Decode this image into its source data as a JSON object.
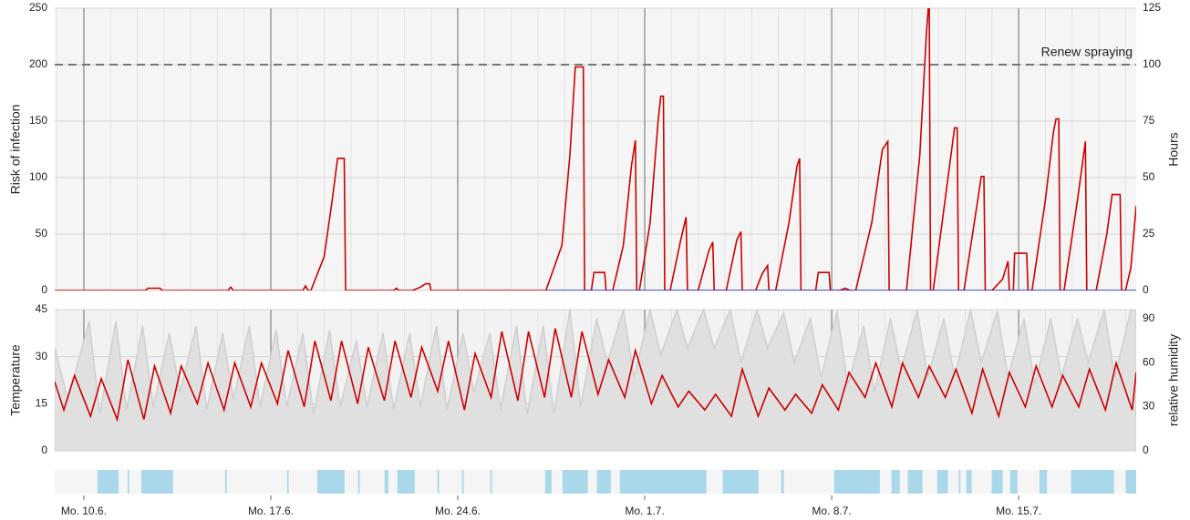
{
  "chart_data": [
    {
      "type": "line",
      "ylabel": "Risk of infection",
      "y2label": "Hours",
      "xlim": [
        -1.09,
        39.4
      ],
      "xticks": [
        0,
        7,
        14,
        21,
        28,
        35
      ],
      "ylim": [
        0,
        250
      ],
      "yticks": [
        0,
        50,
        100,
        150,
        200,
        250
      ],
      "y2lim": [
        0,
        125
      ],
      "y2ticks": [
        0,
        25,
        50,
        75,
        100,
        125
      ],
      "grid": true,
      "threshold": {
        "value": 200,
        "label": "Renew spraying"
      },
      "series": [
        {
          "color": "#cc0000",
          "x": [
            -1.09,
            2.3,
            2.4,
            2.85,
            2.95,
            5.4,
            5.5,
            5.6,
            8.2,
            8.3,
            8.4,
            8.5,
            9.0,
            9.3,
            9.5,
            9.75,
            9.8,
            11.6,
            11.7,
            11.8,
            12.3,
            12.6,
            12.8,
            12.95,
            13.0,
            17.3,
            17.9,
            18.2,
            18.4,
            18.7,
            18.75,
            19.0,
            19.1,
            19.5,
            19.55,
            19.8,
            20.2,
            20.5,
            20.65,
            20.7,
            20.8,
            21.2,
            21.5,
            21.6,
            21.7,
            21.75,
            21.95,
            22.35,
            22.55,
            22.6,
            23.0,
            23.4,
            23.55,
            23.6,
            24.05,
            24.45,
            24.6,
            24.65,
            25.15,
            25.4,
            25.6,
            25.65,
            25.9,
            26.4,
            26.7,
            26.8,
            26.85,
            27.4,
            27.5,
            27.9,
            27.95,
            28.3,
            28.5,
            28.7,
            28.9,
            29.5,
            29.9,
            30.1,
            30.15,
            30.8,
            31.3,
            31.55,
            31.65,
            31.7,
            31.8,
            32.3,
            32.6,
            32.7,
            32.75,
            32.95,
            33.4,
            33.6,
            33.7,
            33.75,
            34.0,
            34.4,
            34.6,
            34.65,
            34.8,
            34.85,
            35.3,
            35.35,
            35.5,
            36.0,
            36.3,
            36.4,
            36.5,
            36.55,
            36.7,
            37.2,
            37.5,
            37.55,
            37.9,
            38.3,
            38.5,
            38.8,
            38.85,
            39.0,
            39.2,
            39.4
          ],
          "values": [
            0,
            0,
            2,
            2,
            0,
            0,
            3,
            0,
            0,
            4,
            0,
            0,
            30,
            80,
            117,
            117,
            0,
            0,
            2,
            0,
            0,
            3,
            6,
            6,
            0,
            0,
            40,
            120,
            198,
            198,
            0,
            0,
            16,
            16,
            0,
            0,
            40,
            110,
            133,
            0,
            0,
            60,
            150,
            172,
            172,
            0,
            0,
            45,
            65,
            0,
            0,
            35,
            43,
            0,
            0,
            45,
            52,
            0,
            0,
            15,
            22,
            0,
            0,
            60,
            110,
            117,
            0,
            0,
            16,
            16,
            0,
            0,
            2,
            0,
            0,
            60,
            125,
            132,
            0,
            0,
            120,
            230,
            260,
            0,
            0,
            90,
            144,
            144,
            0,
            0,
            70,
            101,
            101,
            0,
            0,
            10,
            26,
            0,
            0,
            33,
            33,
            0,
            0,
            80,
            140,
            152,
            152,
            0,
            0,
            80,
            132,
            0,
            0,
            50,
            85,
            85,
            0,
            0,
            20,
            75
          ]
        },
        {
          "color": "#1a2fc0",
          "axis": "y2",
          "x": [
            17.3,
            39.4
          ],
          "values": [
            0,
            0
          ]
        }
      ]
    },
    {
      "type": "line",
      "ylabel": "Temperature",
      "y2label": "relative humidity",
      "xlim": [
        -1.09,
        39.4
      ],
      "xticks": [
        0,
        7,
        14,
        21,
        28,
        35
      ],
      "ylim": [
        0,
        45
      ],
      "yticks": [
        0,
        15,
        30,
        45
      ],
      "y2lim": [
        0,
        96
      ],
      "y2ticks": [
        0,
        30,
        60,
        90
      ],
      "grid": true,
      "series": [
        {
          "color": "#cfcfcf",
          "axis": "y2",
          "area": true,
          "x": [
            -1.09,
            -0.6,
            0.2,
            0.6,
            1.2,
            1.6,
            2.2,
            2.6,
            3.2,
            3.6,
            4.2,
            4.6,
            5.2,
            5.6,
            6.2,
            6.6,
            7.2,
            7.6,
            8.2,
            8.6,
            9.2,
            9.6,
            10.2,
            10.6,
            11.2,
            11.6,
            12.2,
            12.6,
            13.2,
            13.6,
            14.2,
            14.6,
            15.2,
            15.6,
            16.2,
            16.6,
            17.2,
            17.6,
            18.2,
            18.6,
            19.2,
            19.6,
            20.2,
            20.6,
            21.2,
            21.6,
            22.2,
            22.6,
            23.2,
            23.6,
            24.2,
            24.6,
            25.2,
            25.6,
            26.2,
            26.6,
            27.2,
            27.6,
            28.2,
            28.6,
            29.2,
            29.6,
            30.2,
            30.6,
            31.2,
            31.6,
            32.2,
            32.6,
            33.2,
            33.6,
            34.2,
            34.6,
            35.2,
            35.6,
            36.2,
            36.6,
            37.2,
            37.6,
            38.2,
            38.6,
            39.2,
            39.4
          ],
          "values": [
            70,
            35,
            88,
            25,
            88,
            28,
            85,
            30,
            80,
            40,
            85,
            28,
            80,
            35,
            85,
            30,
            82,
            30,
            80,
            25,
            82,
            30,
            75,
            30,
            80,
            28,
            80,
            30,
            85,
            28,
            80,
            40,
            80,
            28,
            85,
            25,
            85,
            25,
            96,
            30,
            90,
            60,
            96,
            50,
            96,
            65,
            96,
            70,
            96,
            70,
            96,
            60,
            96,
            70,
            94,
            60,
            90,
            50,
            95,
            45,
            85,
            40,
            90,
            55,
            96,
            50,
            90,
            50,
            96,
            60,
            95,
            50,
            90,
            45,
            90,
            50,
            90,
            60,
            96,
            50,
            96,
            96
          ]
        },
        {
          "color": "#cc0000",
          "x": [
            -1.09,
            -0.75,
            -0.35,
            0.25,
            0.65,
            1.25,
            1.65,
            2.25,
            2.65,
            3.25,
            3.65,
            4.25,
            4.65,
            5.25,
            5.65,
            6.25,
            6.65,
            7.25,
            7.65,
            8.25,
            8.65,
            9.25,
            9.65,
            10.25,
            10.65,
            11.25,
            11.65,
            12.25,
            12.65,
            13.25,
            13.65,
            14.25,
            14.65,
            15.25,
            15.65,
            16.25,
            16.65,
            17.25,
            17.65,
            18.25,
            18.65,
            19.25,
            19.65,
            20.25,
            20.65,
            21.25,
            21.65,
            22.25,
            22.65,
            23.25,
            23.65,
            24.25,
            24.65,
            25.25,
            25.65,
            26.25,
            26.65,
            27.25,
            27.65,
            28.25,
            28.65,
            29.25,
            29.65,
            30.25,
            30.65,
            31.25,
            31.65,
            32.25,
            32.65,
            33.25,
            33.65,
            34.25,
            34.65,
            35.25,
            35.65,
            36.25,
            36.65,
            37.25,
            37.65,
            38.25,
            38.65,
            39.25,
            39.4
          ],
          "values": [
            22,
            13,
            24,
            11,
            23,
            10,
            29,
            10,
            27,
            12,
            27,
            15,
            28,
            13,
            28,
            14,
            28,
            15,
            32,
            14,
            35,
            16,
            35,
            15,
            33,
            16,
            35,
            17,
            33,
            19,
            35,
            13,
            31,
            17,
            38,
            16,
            38,
            17,
            39,
            17,
            38,
            18,
            29,
            17,
            32,
            15,
            24,
            14,
            19,
            13,
            18,
            11,
            26,
            11,
            20,
            13,
            18,
            12,
            21,
            13,
            25,
            17,
            28,
            14,
            28,
            17,
            27,
            17,
            26,
            12,
            26,
            11,
            25,
            14,
            27,
            14,
            24,
            14,
            26,
            13,
            28,
            13,
            25
          ]
        }
      ]
    },
    {
      "type": "strip",
      "color": "#a8d8ea",
      "xlim": [
        -1.09,
        39.4
      ],
      "xticks": [
        {
          "value": 0,
          "label": "Mo. 10.6."
        },
        {
          "value": 7,
          "label": "Mo. 17.6."
        },
        {
          "value": 14,
          "label": "Mo. 24.6."
        },
        {
          "value": 21,
          "label": "Mo. 1.7."
        },
        {
          "value": 28,
          "label": "Mo. 8.7."
        },
        {
          "value": 35,
          "label": "Mo. 15.7."
        }
      ],
      "intervals": [
        [
          0.51,
          1.3
        ],
        [
          1.64,
          1.7
        ],
        [
          2.15,
          3.34
        ],
        [
          5.29,
          5.35
        ],
        [
          7.61,
          7.67
        ],
        [
          8.74,
          9.76
        ],
        [
          10.27,
          10.33
        ],
        [
          11.26,
          11.4
        ],
        [
          11.74,
          12.39
        ],
        [
          13.24,
          13.3
        ],
        [
          14.16,
          14.22
        ],
        [
          15.22,
          15.28
        ],
        [
          17.27,
          17.51
        ],
        [
          17.92,
          18.87
        ],
        [
          19.21,
          19.73
        ],
        [
          20.07,
          23.31
        ],
        [
          23.92,
          25.26
        ],
        [
          26.11,
          26.21
        ],
        [
          28.09,
          29.8
        ],
        [
          30.24,
          30.55
        ],
        [
          30.85,
          31.4
        ],
        [
          31.95,
          32.35
        ],
        [
          32.76,
          32.82
        ],
        [
          33.04,
          33.24
        ],
        [
          33.99,
          34.4
        ],
        [
          34.68,
          34.95
        ],
        [
          35.78,
          36.06
        ],
        [
          36.96,
          38.57
        ],
        [
          39.01,
          39.4
        ]
      ]
    }
  ]
}
